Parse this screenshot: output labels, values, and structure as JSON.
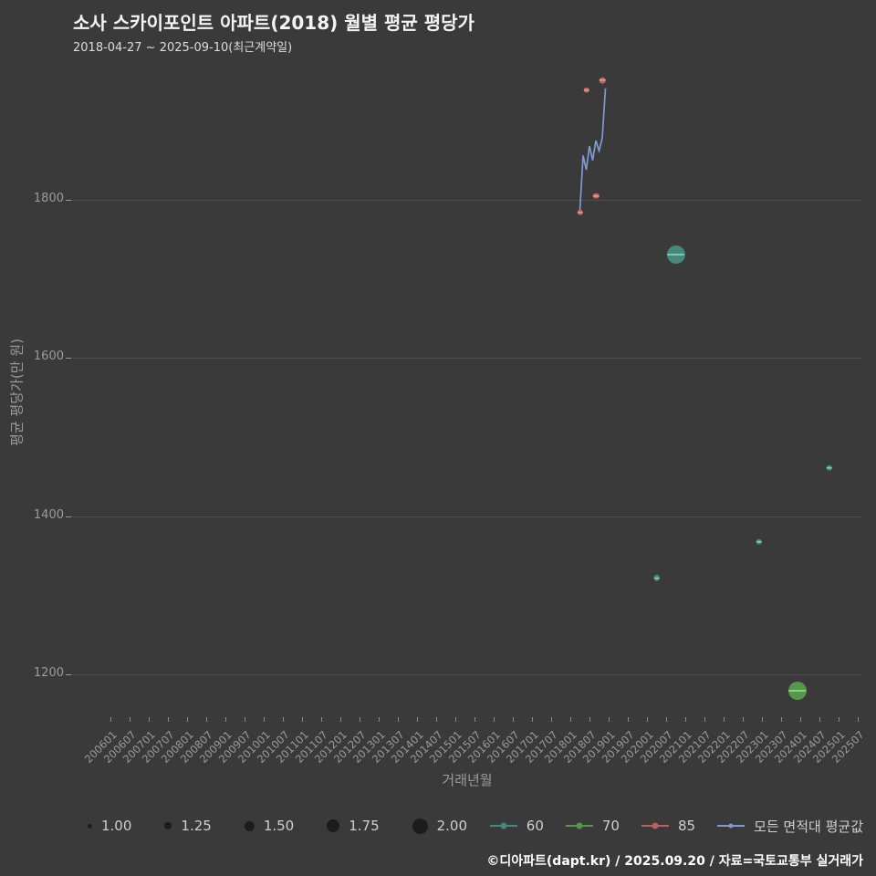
{
  "title": "소사 스카이포인트 아파트(2018) 월별 평균 평당가",
  "subtitle": "2018-04-27 ~ 2025-09-10(최근계약일)",
  "footer": "©디아파트(dapt.kr) / 2025.09.20 / 자료=국토교통부 실거래가",
  "colors": {
    "background": "#3a3a3a",
    "grid": "#4e4e4e",
    "tick_text": "#9b9b9b",
    "title_text": "#f4f4f4",
    "legend_text": "#cfcfcf",
    "size_legend_dot": "#1c1c1c"
  },
  "chart_data": {
    "type": "scatter",
    "title": "소사 스카이포인트 아파트(2018) 월별 평균 평당가",
    "subtitle": "2018-04-27 ~ 2025-09-10(최근계약일)",
    "xlabel": "거래년월",
    "ylabel": "평균 평당가(만 원)",
    "ylim": [
      1140,
      1955
    ],
    "y_ticks": [
      1200,
      1400,
      1600,
      1800
    ],
    "x_ticks": [
      "200601",
      "200607",
      "200701",
      "200707",
      "200801",
      "200807",
      "200901",
      "200907",
      "201001",
      "201007",
      "201101",
      "201107",
      "201201",
      "201207",
      "201301",
      "201307",
      "201401",
      "201407",
      "201501",
      "201507",
      "201601",
      "201607",
      "201701",
      "201707",
      "201801",
      "201807",
      "201901",
      "201907",
      "202001",
      "202007",
      "202101",
      "202107",
      "202201",
      "202207",
      "202301",
      "202307",
      "202401",
      "202407",
      "202501",
      "202507"
    ],
    "grid": "horizontal",
    "legend_position": "bottom",
    "size_legend": [
      "1.00",
      "1.25",
      "1.50",
      "1.75",
      "2.00"
    ],
    "series": [
      {
        "name": "60",
        "type": "scatter",
        "color": "#44897b",
        "color_light": "#8ccbb9",
        "points": [
          {
            "x": "202004",
            "y": 1322,
            "size": 1.0
          },
          {
            "x": "202010",
            "y": 1731,
            "size": 2.0
          },
          {
            "x": "202212",
            "y": 1368,
            "size": 1.0
          },
          {
            "x": "202410",
            "y": 1461,
            "size": 1.0
          }
        ]
      },
      {
        "name": "70",
        "type": "scatter",
        "color": "#55984a",
        "color_light": "#97cf8a",
        "points": [
          {
            "x": "202312",
            "y": 1179,
            "size": 2.0
          }
        ]
      },
      {
        "name": "85",
        "type": "scatter",
        "color": "#bb5f5f",
        "color_light": "#e49c9c",
        "points": [
          {
            "x": "201804",
            "y": 1784,
            "size": 1.0
          },
          {
            "x": "201806",
            "y": 1939,
            "size": 1.0
          },
          {
            "x": "201809",
            "y": 1805,
            "size": 1.0
          },
          {
            "x": "201811",
            "y": 1951,
            "size": 1.0
          }
        ]
      },
      {
        "name": "모든 면적대 평균값",
        "type": "line",
        "color": "#7d9bd1",
        "points": [
          {
            "x": "201804",
            "y": 1787
          },
          {
            "x": "201805",
            "y": 1856
          },
          {
            "x": "201806",
            "y": 1838
          },
          {
            "x": "201807",
            "y": 1868
          },
          {
            "x": "201808",
            "y": 1850
          },
          {
            "x": "201809",
            "y": 1875
          },
          {
            "x": "201810",
            "y": 1862
          },
          {
            "x": "201811",
            "y": 1878
          },
          {
            "x": "201812",
            "y": 1941
          }
        ]
      }
    ]
  }
}
